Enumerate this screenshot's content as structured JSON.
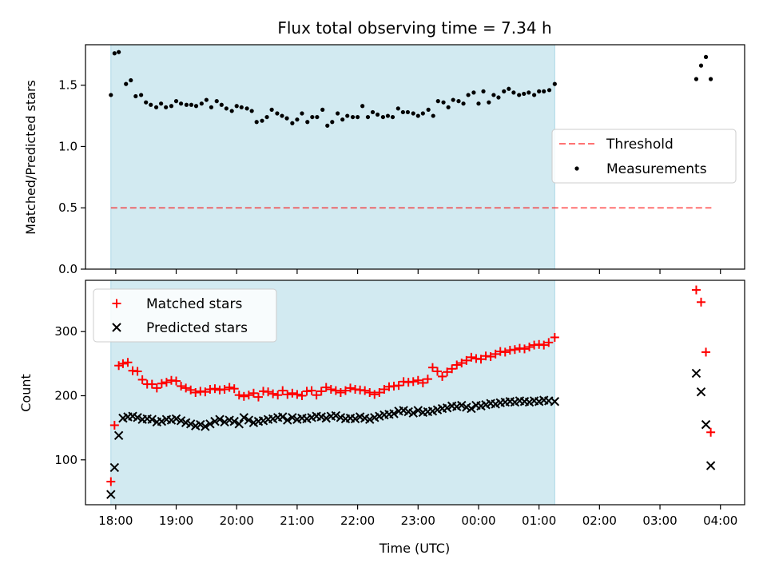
{
  "title": "Flux total observing time = 7.34 h",
  "colors": {
    "shade": "#add8e6",
    "threshold": "#ff0000",
    "measurements": "#000000",
    "matched": "#ff0000",
    "predicted": "#000000"
  },
  "chart_data": [
    {
      "type": "scatter",
      "title": "Flux total observing time = 7.34 h",
      "ylabel": "Matched/Predicted stars",
      "xlabel": "",
      "x_unit": "hours since 18:00 UTC",
      "xlim": [
        -0.5,
        10.4
      ],
      "ylim": [
        0,
        1.83
      ],
      "yticks": [
        0.0,
        0.5,
        1.0,
        1.5
      ],
      "ytick_labels": [
        "0.0",
        "0.5",
        "1.0",
        "1.5"
      ],
      "shaded_span": [
        -0.08,
        7.26
      ],
      "legend": {
        "placement": "center-right",
        "entries": [
          "Threshold",
          "Measurements"
        ]
      },
      "threshold": {
        "name": "Threshold",
        "y": 0.5,
        "x_range": [
          -0.08,
          9.85
        ],
        "style": "dashed"
      },
      "series": [
        {
          "name": "Measurements",
          "marker": "dot",
          "x": [
            -0.08,
            -0.02,
            0.05,
            0.17,
            0.25,
            0.33,
            0.42,
            0.5,
            0.58,
            0.67,
            0.75,
            0.83,
            0.92,
            1.0,
            1.08,
            1.17,
            1.25,
            1.33,
            1.42,
            1.5,
            1.58,
            1.67,
            1.75,
            1.83,
            1.92,
            2.0,
            2.08,
            2.17,
            2.25,
            2.33,
            2.42,
            2.5,
            2.58,
            2.67,
            2.75,
            2.83,
            2.92,
            3.0,
            3.08,
            3.17,
            3.25,
            3.33,
            3.42,
            3.5,
            3.58,
            3.67,
            3.75,
            3.83,
            3.92,
            4.0,
            4.08,
            4.17,
            4.25,
            4.33,
            4.42,
            4.5,
            4.58,
            4.67,
            4.75,
            4.83,
            4.92,
            5.0,
            5.08,
            5.17,
            5.25,
            5.33,
            5.42,
            5.5,
            5.58,
            5.67,
            5.75,
            5.83,
            5.92,
            6.0,
            6.08,
            6.17,
            6.25,
            6.33,
            6.42,
            6.5,
            6.58,
            6.67,
            6.75,
            6.83,
            6.92,
            7.0,
            7.08,
            7.17,
            7.26,
            9.6,
            9.68,
            9.76,
            9.84
          ],
          "y": [
            1.42,
            1.76,
            1.77,
            1.51,
            1.54,
            1.41,
            1.42,
            1.36,
            1.34,
            1.32,
            1.35,
            1.32,
            1.33,
            1.37,
            1.35,
            1.34,
            1.34,
            1.33,
            1.35,
            1.38,
            1.32,
            1.37,
            1.34,
            1.31,
            1.29,
            1.33,
            1.32,
            1.31,
            1.29,
            1.2,
            1.21,
            1.24,
            1.3,
            1.27,
            1.25,
            1.23,
            1.19,
            1.22,
            1.27,
            1.2,
            1.24,
            1.24,
            1.3,
            1.17,
            1.2,
            1.27,
            1.22,
            1.25,
            1.24,
            1.24,
            1.33,
            1.24,
            1.28,
            1.26,
            1.24,
            1.25,
            1.24,
            1.31,
            1.28,
            1.28,
            1.27,
            1.25,
            1.27,
            1.3,
            1.25,
            1.37,
            1.36,
            1.32,
            1.38,
            1.37,
            1.35,
            1.42,
            1.44,
            1.35,
            1.45,
            1.36,
            1.42,
            1.4,
            1.45,
            1.47,
            1.44,
            1.42,
            1.43,
            1.44,
            1.42,
            1.45,
            1.45,
            1.46,
            1.51,
            1.55,
            1.66,
            1.73,
            1.55
          ]
        }
      ]
    },
    {
      "type": "scatter",
      "xlabel": "Time (UTC)",
      "ylabel": "Count",
      "x_unit": "hours since 18:00 UTC",
      "xlim": [
        -0.5,
        10.4
      ],
      "ylim": [
        30,
        380
      ],
      "yticks": [
        100,
        200,
        300
      ],
      "ytick_labels": [
        "100",
        "200",
        "300"
      ],
      "xticks": [
        0,
        1,
        2,
        3,
        4,
        5,
        6,
        7,
        8,
        9,
        10
      ],
      "xtick_labels": [
        "18:00",
        "19:00",
        "20:00",
        "21:00",
        "22:00",
        "23:00",
        "00:00",
        "01:00",
        "02:00",
        "03:00",
        "04:00"
      ],
      "shaded_span": [
        -0.08,
        7.26
      ],
      "legend": {
        "placement": "top-left",
        "entries": [
          "Matched stars",
          "Predicted stars"
        ]
      },
      "series": [
        {
          "name": "Matched stars",
          "marker": "plus",
          "x": [
            -0.08,
            -0.02,
            0.05,
            0.12,
            0.2,
            0.28,
            0.36,
            0.44,
            0.52,
            0.6,
            0.68,
            0.76,
            0.84,
            0.92,
            1.0,
            1.08,
            1.16,
            1.24,
            1.32,
            1.4,
            1.48,
            1.56,
            1.64,
            1.72,
            1.8,
            1.88,
            1.96,
            2.04,
            2.12,
            2.2,
            2.28,
            2.36,
            2.44,
            2.52,
            2.6,
            2.68,
            2.76,
            2.84,
            2.92,
            3.0,
            3.08,
            3.16,
            3.24,
            3.32,
            3.4,
            3.48,
            3.56,
            3.64,
            3.72,
            3.8,
            3.88,
            3.96,
            4.04,
            4.12,
            4.2,
            4.28,
            4.36,
            4.44,
            4.52,
            4.6,
            4.68,
            4.76,
            4.84,
            4.92,
            5.0,
            5.08,
            5.16,
            5.24,
            5.32,
            5.4,
            5.48,
            5.56,
            5.64,
            5.72,
            5.8,
            5.88,
            5.96,
            6.04,
            6.12,
            6.2,
            6.28,
            6.36,
            6.44,
            6.52,
            6.6,
            6.68,
            6.76,
            6.84,
            6.92,
            7.0,
            7.08,
            7.16,
            7.26,
            9.6,
            9.68,
            9.76,
            9.84
          ],
          "y": [
            66,
            154,
            247,
            250,
            252,
            239,
            238,
            225,
            218,
            218,
            212,
            219,
            221,
            224,
            223,
            215,
            212,
            209,
            205,
            207,
            206,
            210,
            211,
            209,
            210,
            213,
            211,
            201,
            199,
            201,
            204,
            198,
            207,
            206,
            203,
            201,
            208,
            202,
            204,
            202,
            200,
            207,
            208,
            201,
            207,
            213,
            210,
            208,
            205,
            208,
            212,
            210,
            209,
            208,
            205,
            202,
            205,
            210,
            214,
            215,
            216,
            222,
            221,
            222,
            224,
            220,
            226,
            244,
            238,
            230,
            237,
            242,
            248,
            251,
            255,
            260,
            258,
            257,
            262,
            261,
            265,
            269,
            268,
            271,
            272,
            274,
            273,
            276,
            279,
            280,
            279,
            283,
            291,
            365,
            346,
            268,
            143
          ]
        },
        {
          "name": "Predicted stars",
          "marker": "x",
          "x": [
            -0.08,
            -0.02,
            0.05,
            0.12,
            0.2,
            0.28,
            0.36,
            0.44,
            0.52,
            0.6,
            0.68,
            0.76,
            0.84,
            0.92,
            1.0,
            1.08,
            1.16,
            1.24,
            1.32,
            1.4,
            1.48,
            1.56,
            1.64,
            1.72,
            1.8,
            1.88,
            1.96,
            2.04,
            2.12,
            2.2,
            2.28,
            2.36,
            2.44,
            2.52,
            2.6,
            2.68,
            2.76,
            2.84,
            2.92,
            3.0,
            3.08,
            3.16,
            3.24,
            3.32,
            3.4,
            3.48,
            3.56,
            3.64,
            3.72,
            3.8,
            3.88,
            3.96,
            4.04,
            4.12,
            4.2,
            4.28,
            4.36,
            4.44,
            4.52,
            4.6,
            4.68,
            4.76,
            4.84,
            4.92,
            5.0,
            5.08,
            5.16,
            5.24,
            5.32,
            5.4,
            5.48,
            5.56,
            5.64,
            5.72,
            5.8,
            5.88,
            5.96,
            6.04,
            6.12,
            6.2,
            6.28,
            6.36,
            6.44,
            6.52,
            6.6,
            6.68,
            6.76,
            6.84,
            6.92,
            7.0,
            7.08,
            7.16,
            7.26,
            9.6,
            9.68,
            9.76,
            9.84
          ],
          "y": [
            46,
            88,
            138,
            165,
            167,
            168,
            166,
            163,
            164,
            163,
            159,
            160,
            163,
            162,
            164,
            161,
            158,
            156,
            153,
            155,
            152,
            156,
            160,
            163,
            159,
            162,
            160,
            156,
            166,
            162,
            158,
            160,
            161,
            163,
            164,
            166,
            167,
            162,
            166,
            163,
            165,
            164,
            166,
            168,
            167,
            165,
            168,
            169,
            166,
            164,
            165,
            164,
            167,
            165,
            163,
            166,
            168,
            170,
            171,
            172,
            176,
            177,
            175,
            173,
            177,
            174,
            175,
            176,
            178,
            180,
            181,
            184,
            183,
            185,
            182,
            180,
            185,
            184,
            186,
            188,
            187,
            189,
            190,
            191,
            190,
            192,
            191,
            190,
            192,
            191,
            193,
            192,
            191,
            235,
            206,
            155,
            91
          ]
        }
      ]
    }
  ]
}
